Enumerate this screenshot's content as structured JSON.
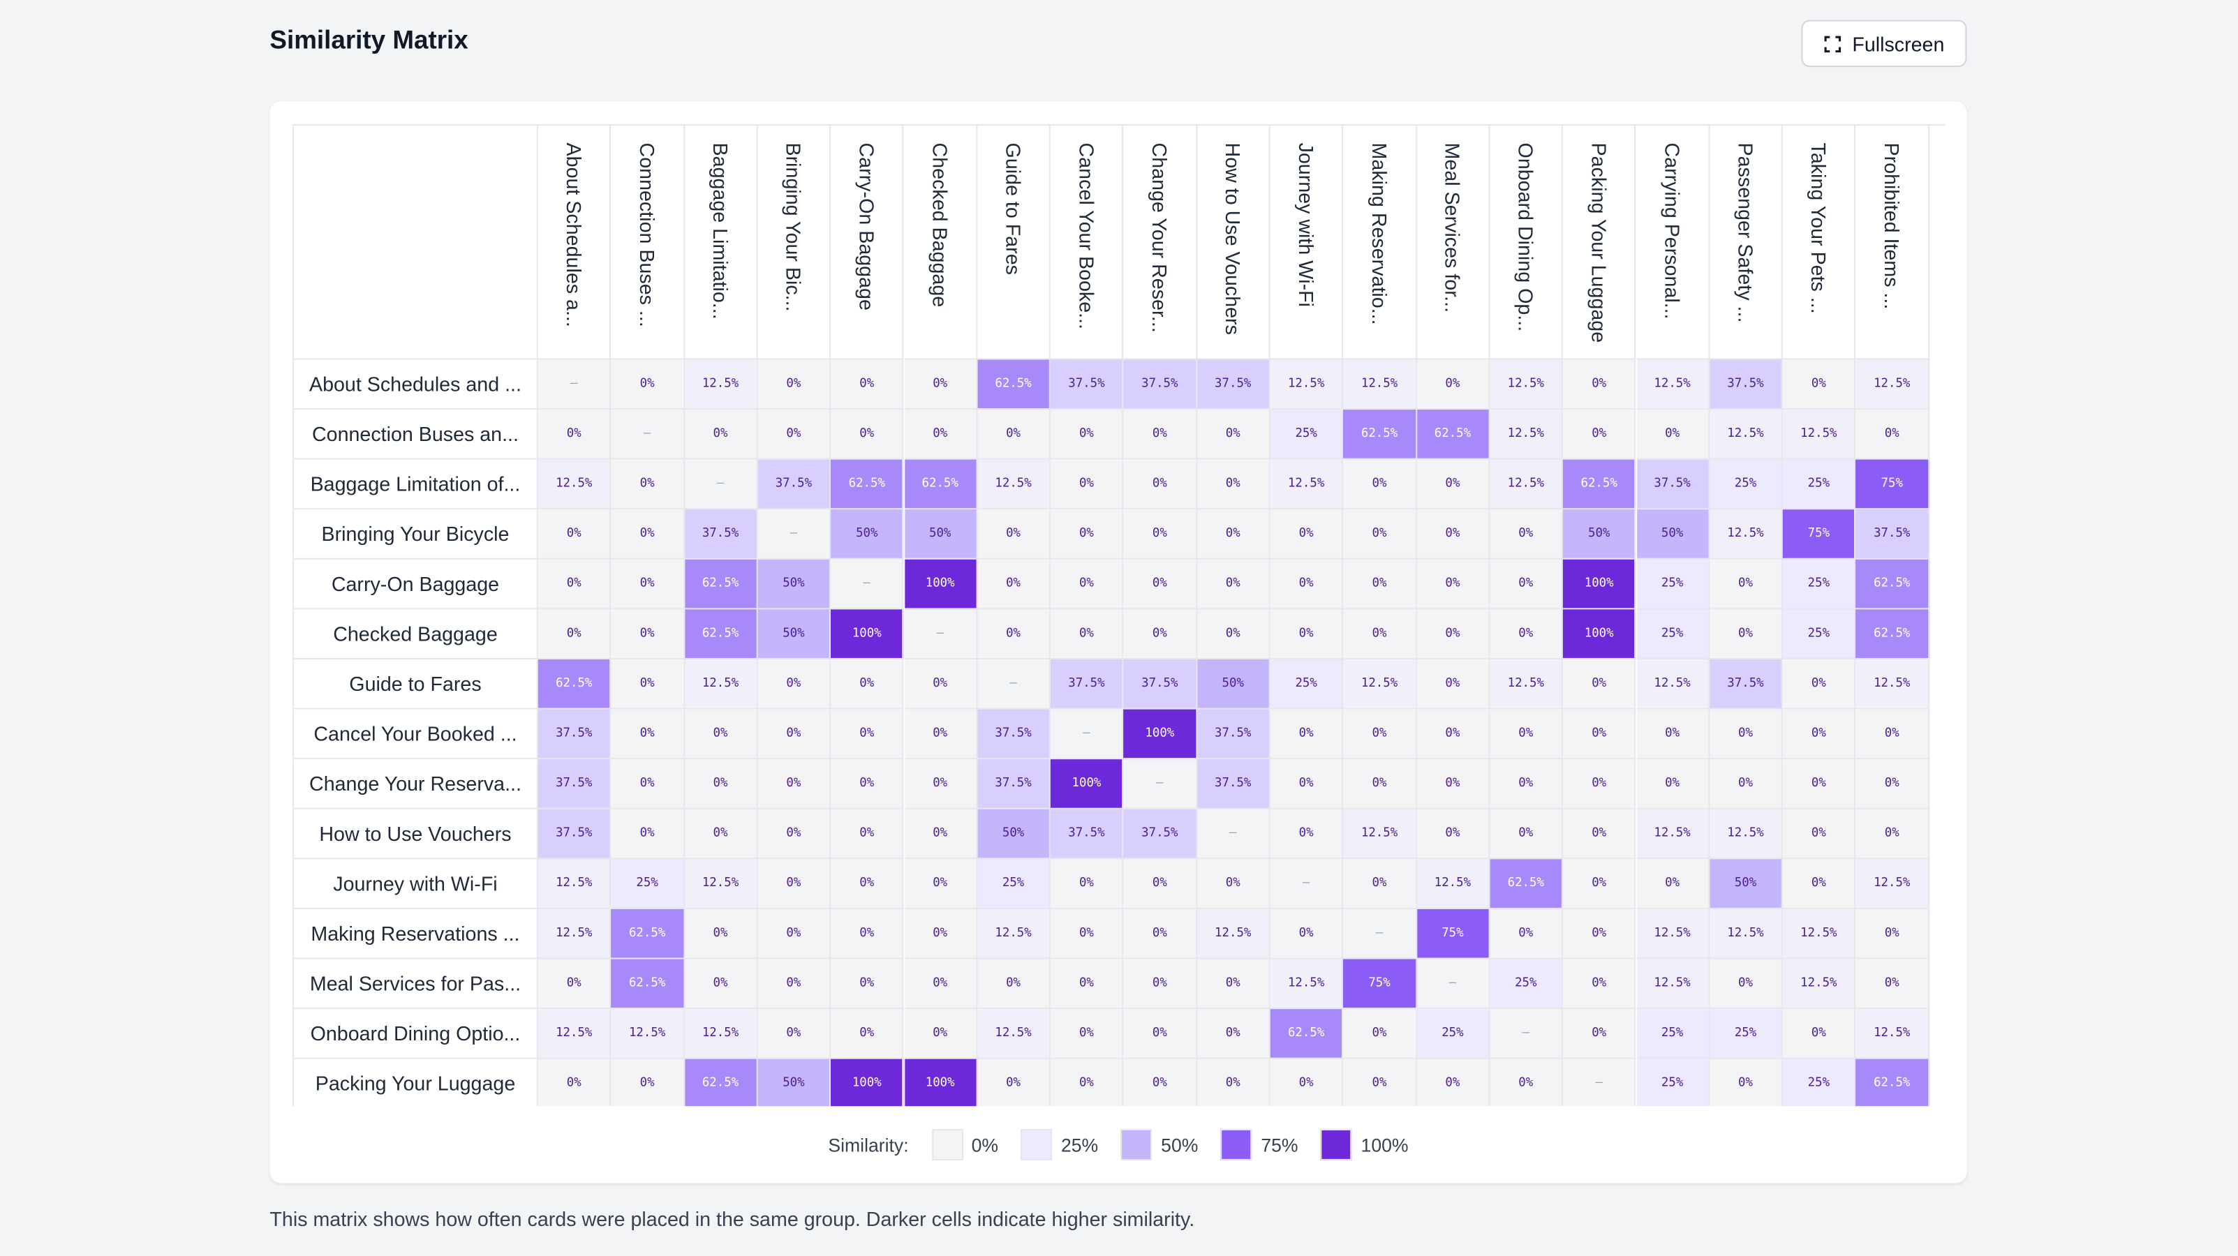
{
  "header": {
    "title": "Similarity Matrix",
    "button": "Fullscreen"
  },
  "matrix": {
    "columns": [
      "About Schedules a...",
      "Connection Buses ...",
      "Baggage Limitatio...",
      "Bringing Your Bic...",
      "Carry-On Baggage",
      "Checked Baggage",
      "Guide to Fares",
      "Cancel Your Booke...",
      "Change Your Reser...",
      "How to Use Vouchers",
      "Journey with Wi-Fi",
      "Making Reservatio...",
      "Meal Services for...",
      "Onboard Dining Op...",
      "Packing Your Luggage",
      "Carrying Personal...",
      "Passenger Safety ...",
      "Taking Your Pets ...",
      "Prohibited Items ..."
    ],
    "rows": [
      {
        "label": "About Schedules and ...",
        "cells": [
          "–",
          "0%",
          "12.5%",
          "0%",
          "0%",
          "0%",
          "62.5%",
          "37.5%",
          "37.5%",
          "37.5%",
          "12.5%",
          "12.5%",
          "0%",
          "12.5%",
          "0%",
          "12.5%",
          "37.5%",
          "0%",
          "12.5%"
        ]
      },
      {
        "label": "Connection Buses an...",
        "cells": [
          "0%",
          "–",
          "0%",
          "0%",
          "0%",
          "0%",
          "0%",
          "0%",
          "0%",
          "0%",
          "25%",
          "62.5%",
          "62.5%",
          "12.5%",
          "0%",
          "0%",
          "12.5%",
          "12.5%",
          "0%"
        ]
      },
      {
        "label": "Baggage Limitation of...",
        "cells": [
          "12.5%",
          "0%",
          "–",
          "37.5%",
          "62.5%",
          "62.5%",
          "12.5%",
          "0%",
          "0%",
          "0%",
          "12.5%",
          "0%",
          "0%",
          "12.5%",
          "62.5%",
          "37.5%",
          "25%",
          "25%",
          "75%"
        ]
      },
      {
        "label": "Bringing Your Bicycle",
        "cells": [
          "0%",
          "0%",
          "37.5%",
          "–",
          "50%",
          "50%",
          "0%",
          "0%",
          "0%",
          "0%",
          "0%",
          "0%",
          "0%",
          "0%",
          "50%",
          "50%",
          "12.5%",
          "75%",
          "37.5%"
        ]
      },
      {
        "label": "Carry-On Baggage",
        "cells": [
          "0%",
          "0%",
          "62.5%",
          "50%",
          "–",
          "100%",
          "0%",
          "0%",
          "0%",
          "0%",
          "0%",
          "0%",
          "0%",
          "0%",
          "100%",
          "25%",
          "0%",
          "25%",
          "62.5%"
        ]
      },
      {
        "label": "Checked Baggage",
        "cells": [
          "0%",
          "0%",
          "62.5%",
          "50%",
          "100%",
          "–",
          "0%",
          "0%",
          "0%",
          "0%",
          "0%",
          "0%",
          "0%",
          "0%",
          "100%",
          "25%",
          "0%",
          "25%",
          "62.5%"
        ]
      },
      {
        "label": "Guide to Fares",
        "cells": [
          "62.5%",
          "0%",
          "12.5%",
          "0%",
          "0%",
          "0%",
          "–",
          "37.5%",
          "37.5%",
          "50%",
          "25%",
          "12.5%",
          "0%",
          "12.5%",
          "0%",
          "12.5%",
          "37.5%",
          "0%",
          "12.5%"
        ]
      },
      {
        "label": "Cancel Your Booked ...",
        "cells": [
          "37.5%",
          "0%",
          "0%",
          "0%",
          "0%",
          "0%",
          "37.5%",
          "–",
          "100%",
          "37.5%",
          "0%",
          "0%",
          "0%",
          "0%",
          "0%",
          "0%",
          "0%",
          "0%",
          "0%"
        ]
      },
      {
        "label": "Change Your Reserva...",
        "cells": [
          "37.5%",
          "0%",
          "0%",
          "0%",
          "0%",
          "0%",
          "37.5%",
          "100%",
          "–",
          "37.5%",
          "0%",
          "0%",
          "0%",
          "0%",
          "0%",
          "0%",
          "0%",
          "0%",
          "0%"
        ]
      },
      {
        "label": "How to Use Vouchers",
        "cells": [
          "37.5%",
          "0%",
          "0%",
          "0%",
          "0%",
          "0%",
          "50%",
          "37.5%",
          "37.5%",
          "–",
          "0%",
          "12.5%",
          "0%",
          "0%",
          "0%",
          "12.5%",
          "12.5%",
          "0%",
          "0%"
        ]
      },
      {
        "label": "Journey with Wi-Fi",
        "cells": [
          "12.5%",
          "25%",
          "12.5%",
          "0%",
          "0%",
          "0%",
          "25%",
          "0%",
          "0%",
          "0%",
          "–",
          "0%",
          "12.5%",
          "62.5%",
          "0%",
          "0%",
          "50%",
          "0%",
          "12.5%"
        ]
      },
      {
        "label": "Making Reservations ...",
        "cells": [
          "12.5%",
          "62.5%",
          "0%",
          "0%",
          "0%",
          "0%",
          "12.5%",
          "0%",
          "0%",
          "12.5%",
          "0%",
          "–",
          "75%",
          "0%",
          "0%",
          "12.5%",
          "12.5%",
          "12.5%",
          "0%"
        ]
      },
      {
        "label": "Meal Services for Pas...",
        "cells": [
          "0%",
          "62.5%",
          "0%",
          "0%",
          "0%",
          "0%",
          "0%",
          "0%",
          "0%",
          "0%",
          "12.5%",
          "75%",
          "–",
          "25%",
          "0%",
          "12.5%",
          "0%",
          "12.5%",
          "0%"
        ]
      },
      {
        "label": "Onboard Dining Optio...",
        "cells": [
          "12.5%",
          "12.5%",
          "12.5%",
          "0%",
          "0%",
          "0%",
          "12.5%",
          "0%",
          "0%",
          "0%",
          "62.5%",
          "0%",
          "25%",
          "–",
          "0%",
          "25%",
          "25%",
          "0%",
          "12.5%"
        ]
      },
      {
        "label": "Packing Your Luggage",
        "cells": [
          "0%",
          "0%",
          "62.5%",
          "50%",
          "100%",
          "100%",
          "0%",
          "0%",
          "0%",
          "0%",
          "0%",
          "0%",
          "0%",
          "0%",
          "–",
          "25%",
          "0%",
          "25%",
          "62.5%"
        ]
      }
    ]
  },
  "legend": {
    "title": "Similarity:",
    "items": [
      {
        "label": "0%",
        "color": "#f4f4f6"
      },
      {
        "label": "25%",
        "color": "#ede9fe"
      },
      {
        "label": "50%",
        "color": "#c4b5fd"
      },
      {
        "label": "75%",
        "color": "#8b5cf6"
      },
      {
        "label": "100%",
        "color": "#6d28d9"
      }
    ]
  },
  "footnote": "This matrix shows how often cards were placed in the same group. Darker cells indicate higher similarity."
}
